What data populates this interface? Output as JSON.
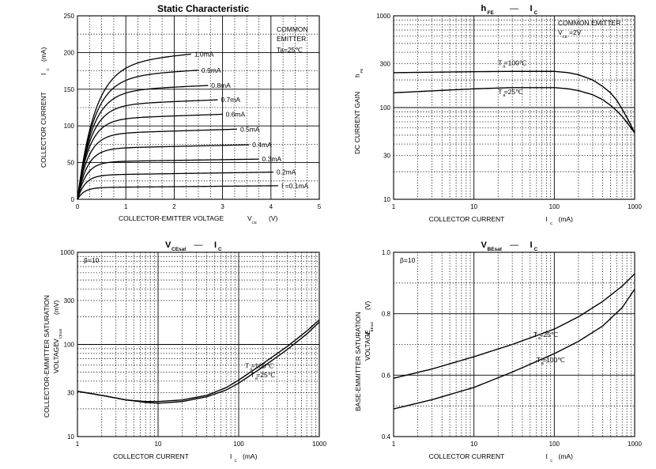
{
  "chart_data": [
    {
      "type": "line",
      "title": "Static Characteristic",
      "xlabel": "COLLECTOR-EMITTER VOLTAGE",
      "xlabel_sym": "V",
      "xlabel_sub": "CE",
      "xlabel_unit": "(V)",
      "ylabel": "COLLECTOR CURRENT",
      "ylabel_sym": "I",
      "ylabel_sub": "C",
      "ylabel_unit": "(mA)",
      "xscale": "linear",
      "yscale": "linear",
      "xlim": [
        0,
        5
      ],
      "ylim": [
        0,
        250
      ],
      "xticks": [
        0,
        1,
        2,
        3,
        4,
        5
      ],
      "yticks": [
        0,
        50,
        100,
        150,
        200,
        250
      ],
      "grid": "dotted minor, solid major",
      "annotation": [
        "COMMON",
        "EMITTER",
        "Ta=25℃"
      ],
      "series": [
        {
          "name": "IB=0.1mA",
          "label": "I  =0.1mA",
          "sat": 16,
          "knee": 0.14,
          "slope": 0.6,
          "label_x": 4.15
        },
        {
          "name": "0.2mA",
          "label": "0.2mA",
          "sat": 33,
          "knee": 0.16,
          "slope": 1.0,
          "label_x": 4.05
        },
        {
          "name": "0.3mA",
          "label": "0.3mA",
          "sat": 51,
          "knee": 0.18,
          "slope": 1.0,
          "label_x": 3.75
        },
        {
          "name": "0.4mA",
          "label": "0.4mA",
          "sat": 69,
          "knee": 0.2,
          "slope": 1.5,
          "label_x": 3.55
        },
        {
          "name": "0.5mA",
          "label": "0.5mA",
          "sat": 89,
          "knee": 0.22,
          "slope": 2.0,
          "label_x": 3.3
        },
        {
          "name": "0.6mA",
          "label": "0.6mA",
          "sat": 109,
          "knee": 0.24,
          "slope": 2.3,
          "label_x": 3.0
        },
        {
          "name": "0.7mA",
          "label": "0.7mA",
          "sat": 128,
          "knee": 0.27,
          "slope": 2.6,
          "label_x": 2.9
        },
        {
          "name": "0.8mA",
          "label": "0.8mA",
          "sat": 147,
          "knee": 0.3,
          "slope": 3.0,
          "label_x": 2.7
        },
        {
          "name": "0.9mA",
          "label": "0.9mA",
          "sat": 166,
          "knee": 0.33,
          "slope": 4.0,
          "label_x": 2.5
        },
        {
          "name": "1.0mA",
          "label": "1.0mA",
          "sat": 184,
          "knee": 0.36,
          "slope": 6.0,
          "label_x": 2.35
        }
      ]
    },
    {
      "type": "line",
      "title": "hFE — IC",
      "title_parts": [
        "h",
        "FE",
        "—",
        "I",
        "C"
      ],
      "xlabel": "COLLECTOR CURRENT",
      "xlabel_sym": "I",
      "xlabel_sub": "C",
      "xlabel_unit": "(mA)",
      "ylabel": "DC CURRENT GAIN",
      "ylabel_sym": "h",
      "ylabel_sub": "FE",
      "xscale": "log",
      "yscale": "log",
      "xlim": [
        1,
        1000
      ],
      "ylim": [
        10,
        1000
      ],
      "xticks": [
        1,
        10,
        100,
        1000
      ],
      "yticks": [
        10,
        30,
        100,
        300,
        1000
      ],
      "grid": "dotted minor, solid major",
      "annotation": [
        "COMMON EMITTER",
        "VCE=2V"
      ],
      "series": [
        {
          "name": "Ta=100℃",
          "label": "T =100℃",
          "x": [
            1,
            3,
            10,
            30,
            100,
            150,
            200,
            300,
            400,
            500,
            600,
            700,
            800,
            900,
            1000
          ],
          "y": [
            240,
            243,
            246,
            248,
            248,
            240,
            228,
            200,
            170,
            145,
            120,
            96,
            78,
            64,
            53
          ]
        },
        {
          "name": "Ta=25℃",
          "label": "T =25℃",
          "x": [
            1,
            3,
            10,
            30,
            100,
            150,
            200,
            300,
            400,
            500,
            600,
            700,
            800,
            900,
            1000
          ],
          "y": [
            145,
            152,
            160,
            165,
            165,
            160,
            153,
            138,
            122,
            106,
            92,
            80,
            69,
            60,
            53
          ]
        }
      ]
    },
    {
      "type": "line",
      "title": "VCEsat — IC",
      "title_parts": [
        "V",
        "CEsat",
        "—",
        "I",
        "C"
      ],
      "xlabel": "COLLECTOR CURRENT",
      "xlabel_sym": "I",
      "xlabel_sub": "C",
      "xlabel_unit": "(mA)",
      "ylabel": "COLLECTOR-EMMITTER SATURATION",
      "ylabel2": "VOLTAGE",
      "ylabel_sym": "V",
      "ylabel_sub": "CEsat",
      "ylabel_unit": "(mV)",
      "xscale": "log",
      "yscale": "log",
      "xlim": [
        1,
        1000
      ],
      "ylim": [
        10,
        1000
      ],
      "xticks": [
        1,
        10,
        100,
        1000
      ],
      "yticks": [
        10,
        30,
        100,
        300,
        1000
      ],
      "grid": "dotted minor, solid major",
      "annotation": [
        "β=10"
      ],
      "series": [
        {
          "name": "Ta=100℃",
          "label": "T =100℃",
          "x": [
            1,
            2,
            4,
            7,
            10,
            20,
            40,
            70,
            100,
            200,
            400,
            700,
            1000
          ],
          "y": [
            31,
            28,
            25,
            24,
            24,
            25,
            28,
            34,
            41,
            62,
            95,
            140,
            185
          ]
        },
        {
          "name": "Ta=25℃",
          "label": "T =25℃",
          "x": [
            1,
            2,
            4,
            7,
            10,
            20,
            40,
            70,
            100,
            200,
            400,
            700,
            1000
          ],
          "y": [
            31,
            28,
            25,
            23.5,
            23,
            24,
            27,
            32,
            38,
            57,
            88,
            130,
            175
          ]
        }
      ]
    },
    {
      "type": "line",
      "title": "VBEsat — IC",
      "title_parts": [
        "V",
        "BEsat",
        "—",
        "I",
        "C"
      ],
      "xlabel": "COLLECTOR CURRENT",
      "xlabel_sym": "I",
      "xlabel_sub": "C",
      "xlabel_unit": "(mA)",
      "ylabel": "BASE-EMMITTER SATURATION",
      "ylabel2": "VOLTAGE",
      "ylabel_sym": "V",
      "ylabel_sub": "BEsat",
      "ylabel_unit": "(V)",
      "xscale": "log",
      "yscale": "linear",
      "xlim": [
        1,
        1000
      ],
      "ylim": [
        0.4,
        1.0
      ],
      "xticks": [
        1,
        10,
        100,
        1000
      ],
      "yticks": [
        0.4,
        0.6,
        0.8,
        1.0
      ],
      "grid": "dotted minor, solid major",
      "annotation": [
        "β=10"
      ],
      "series": [
        {
          "name": "Ta=25℃",
          "label": "T =25℃",
          "x": [
            1,
            3,
            10,
            30,
            100,
            200,
            400,
            700,
            1000
          ],
          "y": [
            0.59,
            0.62,
            0.66,
            0.7,
            0.75,
            0.79,
            0.84,
            0.89,
            0.93
          ]
        },
        {
          "name": "Ta=100℃",
          "label": "T =100℃",
          "x": [
            1,
            3,
            10,
            30,
            100,
            200,
            400,
            700,
            1000
          ],
          "y": [
            0.49,
            0.52,
            0.56,
            0.61,
            0.67,
            0.71,
            0.76,
            0.82,
            0.88
          ]
        }
      ]
    }
  ]
}
